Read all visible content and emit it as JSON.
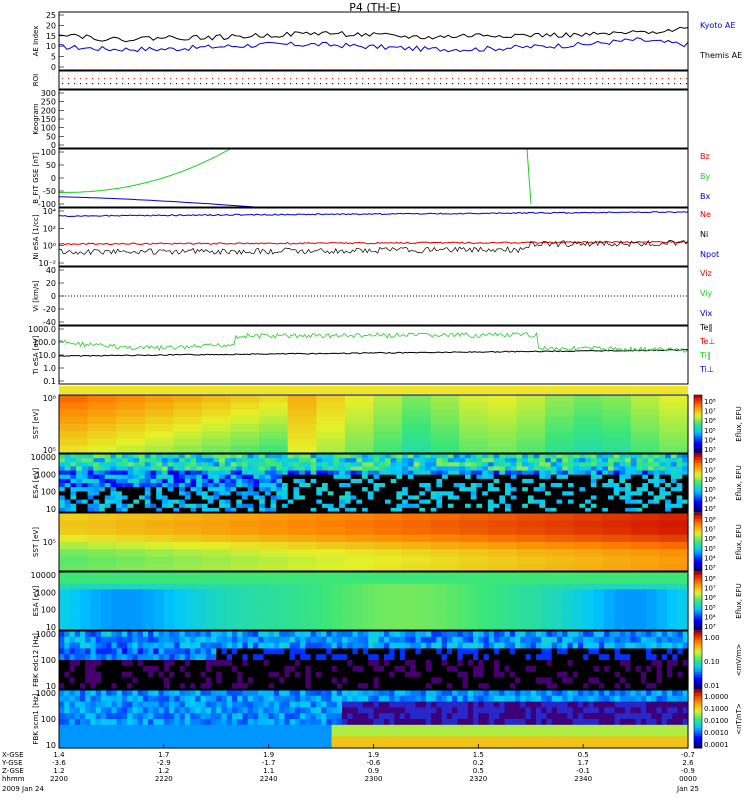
{
  "title": "P4 (TH-E)",
  "colors": {
    "black": "#000000",
    "red": "#e00000",
    "green": "#22cc22",
    "blue": "#0000cc"
  },
  "chart_data": [
    {
      "type": "line",
      "panel": "ae",
      "ylabel": "AE Index",
      "yticks": [
        "25",
        "20",
        "15",
        "10",
        "5",
        "0"
      ],
      "ylim": [
        0,
        25
      ],
      "x": [
        0,
        10,
        20,
        30,
        40,
        50,
        60,
        70,
        80,
        90,
        100,
        110,
        120
      ],
      "series": [
        {
          "name": "Kyoto AE",
          "color": "blue",
          "values": [
            10,
            9,
            9,
            10,
            11,
            11,
            10,
            9,
            9,
            10,
            11,
            13,
            11
          ]
        },
        {
          "name": "Themis AE",
          "color": "black",
          "values": [
            16,
            13,
            14,
            14,
            15,
            16,
            15,
            14,
            15,
            15,
            15,
            16,
            18
          ]
        }
      ]
    },
    {
      "type": "scatter",
      "panel": "roi",
      "ylabel": "ROI"
    },
    {
      "type": "heatmap",
      "panel": "keogram",
      "ylabel": "Keogram",
      "yticks": [
        "300",
        "250",
        "200",
        "150",
        "100",
        "50",
        "0"
      ]
    },
    {
      "type": "line",
      "panel": "bfit",
      "ylabel": "B_FIT GSE [nT]",
      "yticks": [
        "100",
        "50",
        "0",
        "-50",
        "-100"
      ],
      "ylim": [
        -100,
        100
      ],
      "series": [
        {
          "name": "Bz",
          "color": "red"
        },
        {
          "name": "By",
          "color": "green"
        },
        {
          "name": "Bx",
          "color": "blue"
        }
      ]
    },
    {
      "type": "line",
      "panel": "ni",
      "ylabel": "Ni eSA [1/cc]",
      "yticks": [
        "10⁴",
        "10²",
        "10⁰",
        "10⁻²"
      ],
      "series": [
        {
          "name": "Ne",
          "color": "red"
        },
        {
          "name": "Ni",
          "color": "black"
        },
        {
          "name": "Npot",
          "color": "blue"
        }
      ]
    },
    {
      "type": "line",
      "panel": "vi",
      "ylabel": "Vi [km/s]",
      "yticks": [
        "40",
        "20",
        "0",
        "-20",
        "-40"
      ],
      "ylim": [
        -50,
        50
      ],
      "series": [
        {
          "name": "Viz",
          "color": "red"
        },
        {
          "name": "Viy",
          "color": "green"
        },
        {
          "name": "Vix",
          "color": "blue"
        }
      ]
    },
    {
      "type": "line",
      "panel": "ti",
      "ylabel": "Ti eSA [eV]",
      "yticks": [
        "1000.0",
        "100.0",
        "10.0",
        "1.0",
        "0.1"
      ],
      "series": [
        {
          "name": "Te‖",
          "color": "black"
        },
        {
          "name": "Te⊥",
          "color": "red"
        },
        {
          "name": "Ti‖",
          "color": "green"
        },
        {
          "name": "Ti⊥",
          "color": "blue"
        }
      ]
    },
    {
      "type": "heatmap",
      "panel": "sst-e",
      "ylabel": "SST [eV]",
      "yticks": [
        "10⁶",
        "10⁵"
      ],
      "colorbar": "Eflux, EFU"
    },
    {
      "type": "heatmap",
      "panel": "esa-e",
      "ylabel": "ESA [eV]",
      "yticks": [
        "10000",
        "1000",
        "100",
        "10"
      ],
      "colorbar": "Eflux, EFU"
    },
    {
      "type": "heatmap",
      "panel": "sst-i",
      "ylabel": "SST [eV]",
      "yticks": [
        "10⁵"
      ],
      "colorbar": "Eflux, EFU"
    },
    {
      "type": "heatmap",
      "panel": "esa-i",
      "ylabel": "ESA [eV]",
      "yticks": [
        "10000",
        "1000",
        "100",
        "10"
      ],
      "colorbar": "Eflux, EFU"
    },
    {
      "type": "heatmap",
      "panel": "fbk-e",
      "ylabel": "FBK edc12 [Hz]",
      "yticks": [
        "1000",
        "100",
        "10"
      ],
      "colorbar": "<mV/m>",
      "colorbar_ticks": [
        "1.00",
        "0.10",
        "0.01"
      ]
    },
    {
      "type": "heatmap",
      "panel": "fbk-b",
      "ylabel": "FBK scm1 [Hz]",
      "yticks": [
        "1000",
        "100",
        "10"
      ],
      "colorbar": "<nT/nT>",
      "colorbar_ticks": [
        "1.0000",
        "0.1000",
        "0.0100",
        "0.0010",
        "0.0001"
      ]
    }
  ],
  "colorbar_ticks_flux": [
    "10⁸",
    "10⁷",
    "10⁶",
    "10⁵",
    "10⁴",
    "10³"
  ],
  "time_axis": {
    "rows": [
      {
        "label": "X-GSE",
        "values": [
          "1.4",
          "1.7",
          "1.9",
          "1.9",
          "1.5",
          "0.5",
          "-0.7"
        ]
      },
      {
        "label": "Y-GSE",
        "values": [
          "-3.6",
          "-2.9",
          "-1.7",
          "-0.6",
          "0.2",
          "1.7",
          "2.6"
        ]
      },
      {
        "label": "Z-GSE",
        "values": [
          "1.2",
          "1.2",
          "1.1",
          "0.9",
          "0.5",
          "-0.1",
          "-0.9"
        ]
      },
      {
        "label": "hhmm",
        "values": [
          "2200",
          "2220",
          "2240",
          "2300",
          "2320",
          "2340",
          "0000"
        ]
      }
    ],
    "date_left": "2009 Jan 24",
    "date_right": "Jan 25"
  }
}
